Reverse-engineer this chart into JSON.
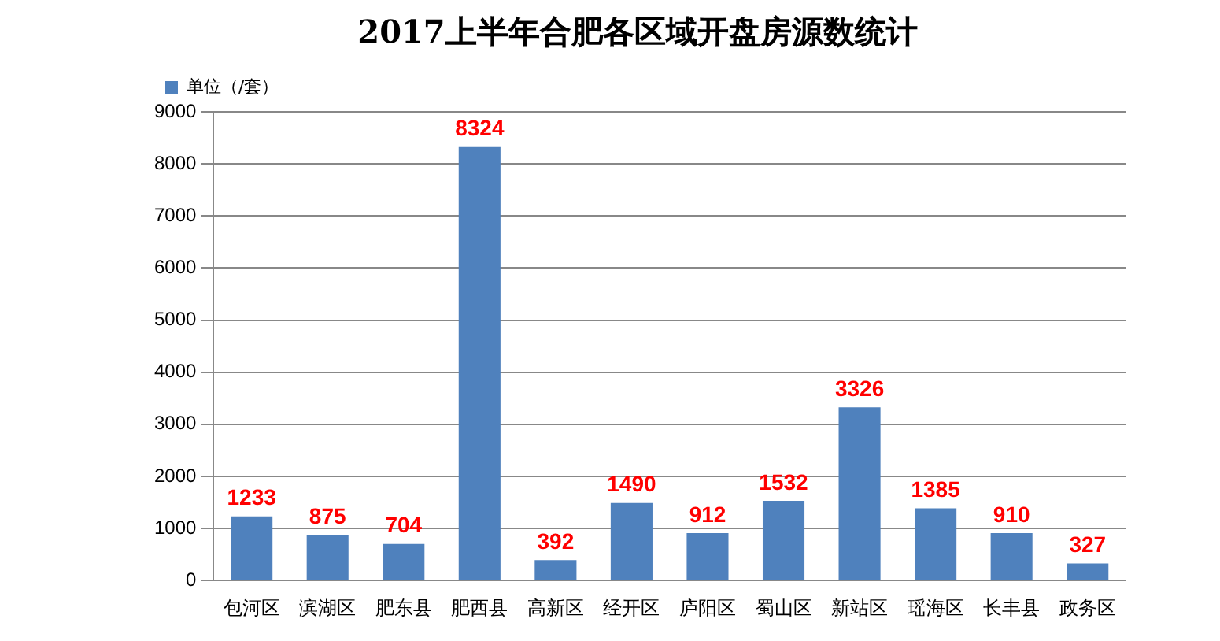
{
  "chart_data": {
    "type": "bar",
    "title": "2017上半年合肥各区域开盘房源数统计",
    "categories": [
      "包河区",
      "滨湖区",
      "肥东县",
      "肥西县",
      "高新区",
      "经开区",
      "庐阳区",
      "蜀山区",
      "新站区",
      "瑶海区",
      "长丰县",
      "政务区"
    ],
    "series": [
      {
        "name": "单位（/套）",
        "color": "#4f81bd",
        "values": [
          1233,
          875,
          704,
          8324,
          392,
          1490,
          912,
          1532,
          3326,
          1385,
          910,
          327
        ]
      }
    ],
    "ylim": [
      0,
      9000
    ],
    "yticks": [
      0,
      1000,
      2000,
      3000,
      4000,
      5000,
      6000,
      7000,
      8000,
      9000
    ],
    "grid": "y",
    "legend": "top left",
    "data_labels": true
  }
}
